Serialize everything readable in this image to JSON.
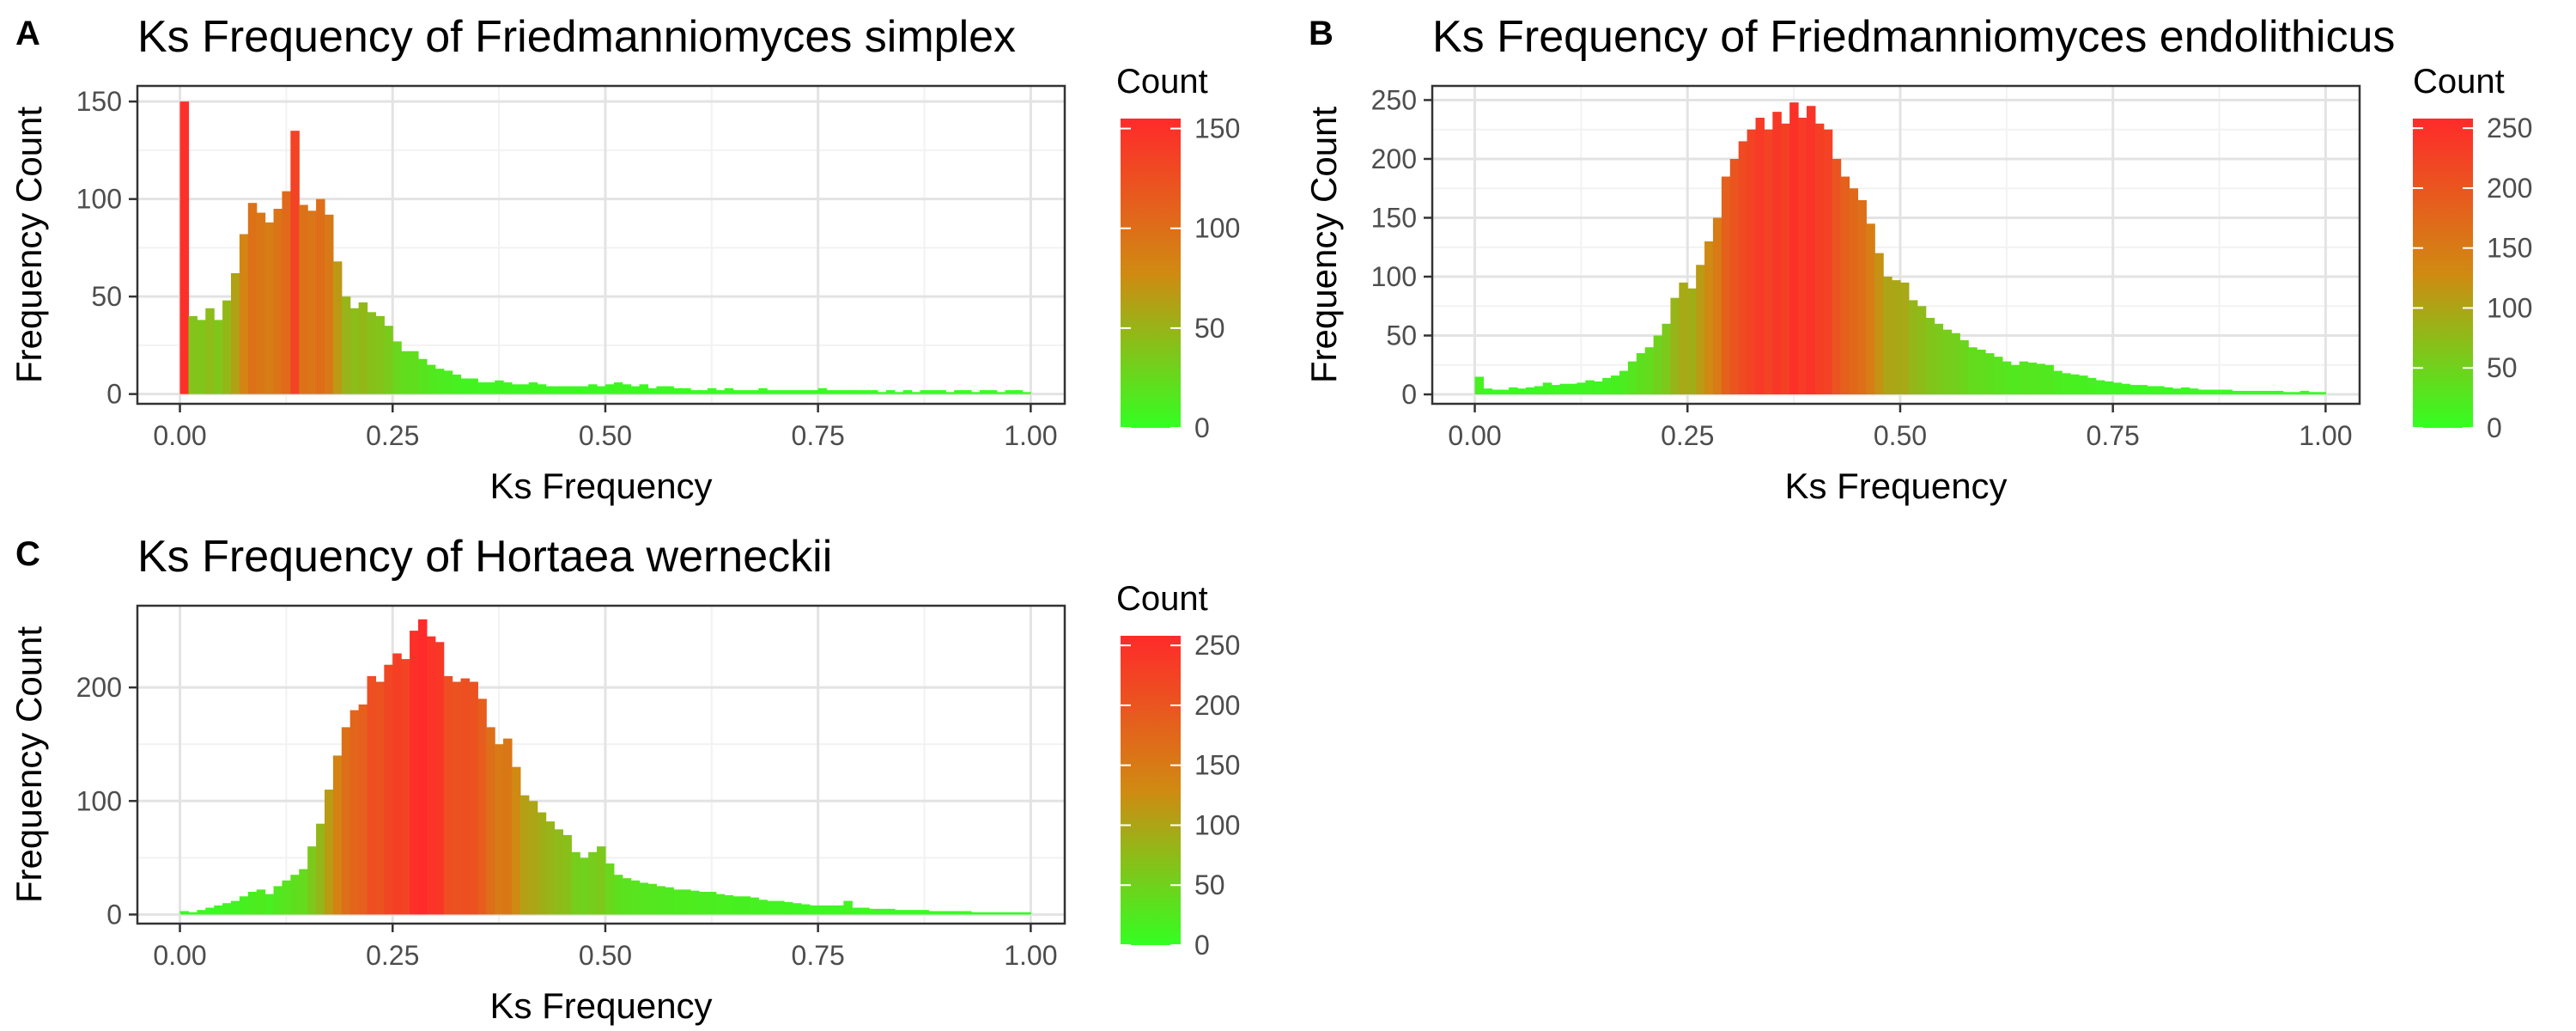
{
  "figure": {
    "colors": {
      "low": "#33ff22",
      "mid": "#d08a12",
      "high": "#ff2a2a",
      "grid_major": "#e3e3e3",
      "grid_minor": "#f2f2f2",
      "panel_border": "#333333"
    }
  },
  "chart_data": [
    {
      "type": "bar",
      "panel_letter": "A",
      "title": "Ks Frequency of Friedmanniomyces simplex",
      "xlabel": "Ks Frequency",
      "ylabel": "Frequency Count",
      "xlim": [
        -0.05,
        1.04
      ],
      "ylim": [
        -5,
        158
      ],
      "x_ticks": [
        0.0,
        0.25,
        0.5,
        0.75,
        1.0
      ],
      "x_tick_labels": [
        "0.00",
        "0.25",
        "0.50",
        "0.75",
        "1.00"
      ],
      "y_ticks": [
        0,
        50,
        100,
        150
      ],
      "y_tick_labels": [
        "0",
        "50",
        "100",
        "150"
      ],
      "legend": {
        "title": "Count",
        "min": 0,
        "max": 155,
        "ticks": [
          0,
          50,
          100,
          150
        ],
        "tick_labels": [
          "0",
          "50",
          "100",
          "150"
        ],
        "position": "right"
      },
      "bin_width": 0.01,
      "x": [
        0.0,
        0.01,
        0.02,
        0.03,
        0.04,
        0.05,
        0.06,
        0.07,
        0.08,
        0.09,
        0.1,
        0.11,
        0.12,
        0.13,
        0.14,
        0.15,
        0.16,
        0.17,
        0.18,
        0.19,
        0.2,
        0.21,
        0.22,
        0.23,
        0.24,
        0.25,
        0.26,
        0.27,
        0.28,
        0.29,
        0.3,
        0.31,
        0.32,
        0.33,
        0.34,
        0.35,
        0.36,
        0.37,
        0.38,
        0.39,
        0.4,
        0.41,
        0.42,
        0.43,
        0.44,
        0.45,
        0.46,
        0.47,
        0.48,
        0.49,
        0.5,
        0.51,
        0.52,
        0.53,
        0.54,
        0.55,
        0.56,
        0.57,
        0.58,
        0.59,
        0.6,
        0.61,
        0.62,
        0.63,
        0.64,
        0.65,
        0.66,
        0.67,
        0.68,
        0.69,
        0.7,
        0.71,
        0.72,
        0.73,
        0.74,
        0.75,
        0.76,
        0.77,
        0.78,
        0.79,
        0.8,
        0.81,
        0.82,
        0.83,
        0.84,
        0.85,
        0.86,
        0.87,
        0.88,
        0.89,
        0.9,
        0.91,
        0.92,
        0.93,
        0.94,
        0.95,
        0.96,
        0.97,
        0.98,
        0.99
      ],
      "values": [
        150,
        40,
        38,
        44,
        38,
        48,
        62,
        82,
        98,
        93,
        88,
        95,
        104,
        135,
        97,
        94,
        100,
        92,
        68,
        50,
        44,
        47,
        42,
        40,
        35,
        27,
        22,
        22,
        18,
        15,
        13,
        12,
        10,
        8,
        8,
        6,
        6,
        7,
        6,
        5,
        5,
        6,
        5,
        4,
        4,
        4,
        4,
        4,
        5,
        4,
        5,
        6,
        5,
        4,
        5,
        3,
        4,
        4,
        3,
        3,
        2,
        2,
        3,
        2,
        3,
        2,
        2,
        2,
        3,
        2,
        2,
        2,
        2,
        2,
        2,
        3,
        2,
        2,
        2,
        2,
        2,
        2,
        1,
        2,
        1,
        2,
        1,
        2,
        2,
        2,
        1,
        2,
        2,
        1,
        2,
        2,
        1,
        2,
        2,
        1
      ]
    },
    {
      "type": "bar",
      "panel_letter": "B",
      "title": "Ks Frequency of Friedmanniomyces endolithicus",
      "xlabel": "Ks Frequency",
      "ylabel": "Frequency Count",
      "xlim": [
        -0.05,
        1.04
      ],
      "ylim": [
        -8,
        262
      ],
      "x_ticks": [
        0.0,
        0.25,
        0.5,
        0.75,
        1.0
      ],
      "x_tick_labels": [
        "0.00",
        "0.25",
        "0.50",
        "0.75",
        "1.00"
      ],
      "y_ticks": [
        0,
        50,
        100,
        150,
        200,
        250
      ],
      "y_tick_labels": [
        "0",
        "50",
        "100",
        "150",
        "200",
        "250"
      ],
      "legend": {
        "title": "Count",
        "min": 0,
        "max": 258,
        "ticks": [
          0,
          50,
          100,
          150,
          200,
          250
        ],
        "tick_labels": [
          "0",
          "50",
          "100",
          "150",
          "200",
          "250"
        ],
        "position": "right"
      },
      "bin_width": 0.01,
      "x": [
        0.0,
        0.01,
        0.02,
        0.03,
        0.04,
        0.05,
        0.06,
        0.07,
        0.08,
        0.09,
        0.1,
        0.11,
        0.12,
        0.13,
        0.14,
        0.15,
        0.16,
        0.17,
        0.18,
        0.19,
        0.2,
        0.21,
        0.22,
        0.23,
        0.24,
        0.25,
        0.26,
        0.27,
        0.28,
        0.29,
        0.3,
        0.31,
        0.32,
        0.33,
        0.34,
        0.35,
        0.36,
        0.37,
        0.38,
        0.39,
        0.4,
        0.41,
        0.42,
        0.43,
        0.44,
        0.45,
        0.46,
        0.47,
        0.48,
        0.49,
        0.5,
        0.51,
        0.52,
        0.53,
        0.54,
        0.55,
        0.56,
        0.57,
        0.58,
        0.59,
        0.6,
        0.61,
        0.62,
        0.63,
        0.64,
        0.65,
        0.66,
        0.67,
        0.68,
        0.69,
        0.7,
        0.71,
        0.72,
        0.73,
        0.74,
        0.75,
        0.76,
        0.77,
        0.78,
        0.79,
        0.8,
        0.81,
        0.82,
        0.83,
        0.84,
        0.85,
        0.86,
        0.87,
        0.88,
        0.89,
        0.9,
        0.91,
        0.92,
        0.93,
        0.94,
        0.95,
        0.96,
        0.97,
        0.98,
        0.99
      ],
      "values": [
        15,
        5,
        4,
        4,
        6,
        5,
        6,
        7,
        10,
        8,
        9,
        9,
        10,
        12,
        11,
        14,
        16,
        20,
        28,
        35,
        40,
        50,
        60,
        82,
        95,
        90,
        110,
        130,
        150,
        185,
        200,
        215,
        225,
        235,
        225,
        240,
        230,
        248,
        235,
        245,
        230,
        225,
        200,
        185,
        175,
        165,
        145,
        120,
        100,
        97,
        95,
        80,
        75,
        65,
        60,
        55,
        52,
        46,
        40,
        38,
        35,
        32,
        28,
        25,
        28,
        27,
        26,
        25,
        20,
        18,
        17,
        16,
        14,
        12,
        11,
        10,
        9,
        8,
        8,
        7,
        7,
        6,
        5,
        6,
        5,
        4,
        4,
        4,
        4,
        3,
        3,
        3,
        3,
        3,
        3,
        2,
        2,
        3,
        2,
        2
      ]
    },
    {
      "type": "bar",
      "panel_letter": "C",
      "title": "Ks Frequency of Hortaea werneckii",
      "xlabel": "Ks Frequency",
      "ylabel": "Frequency Count",
      "xlim": [
        -0.05,
        1.04
      ],
      "ylim": [
        -8,
        272
      ],
      "x_ticks": [
        0.0,
        0.25,
        0.5,
        0.75,
        1.0
      ],
      "x_tick_labels": [
        "0.00",
        "0.25",
        "0.50",
        "0.75",
        "1.00"
      ],
      "y_ticks": [
        0,
        100,
        200
      ],
      "y_tick_labels": [
        "0",
        "100",
        "200"
      ],
      "legend": {
        "title": "Count",
        "min": 0,
        "max": 258,
        "ticks": [
          0,
          50,
          100,
          150,
          200,
          250
        ],
        "tick_labels": [
          "0",
          "50",
          "100",
          "150",
          "200",
          "250"
        ],
        "position": "right"
      },
      "bin_width": 0.01,
      "x": [
        0.0,
        0.01,
        0.02,
        0.03,
        0.04,
        0.05,
        0.06,
        0.07,
        0.08,
        0.09,
        0.1,
        0.11,
        0.12,
        0.13,
        0.14,
        0.15,
        0.16,
        0.17,
        0.18,
        0.19,
        0.2,
        0.21,
        0.22,
        0.23,
        0.24,
        0.25,
        0.26,
        0.27,
        0.28,
        0.29,
        0.3,
        0.31,
        0.32,
        0.33,
        0.34,
        0.35,
        0.36,
        0.37,
        0.38,
        0.39,
        0.4,
        0.41,
        0.42,
        0.43,
        0.44,
        0.45,
        0.46,
        0.47,
        0.48,
        0.49,
        0.5,
        0.51,
        0.52,
        0.53,
        0.54,
        0.55,
        0.56,
        0.57,
        0.58,
        0.59,
        0.6,
        0.61,
        0.62,
        0.63,
        0.64,
        0.65,
        0.66,
        0.67,
        0.68,
        0.69,
        0.7,
        0.71,
        0.72,
        0.73,
        0.74,
        0.75,
        0.76,
        0.77,
        0.78,
        0.79,
        0.8,
        0.81,
        0.82,
        0.83,
        0.84,
        0.85,
        0.86,
        0.87,
        0.88,
        0.89,
        0.9,
        0.91,
        0.92,
        0.93,
        0.94,
        0.95,
        0.96,
        0.97,
        0.98,
        0.99
      ],
      "values": [
        3,
        2,
        4,
        6,
        8,
        10,
        12,
        16,
        20,
        22,
        18,
        25,
        30,
        35,
        40,
        60,
        80,
        110,
        140,
        165,
        180,
        185,
        210,
        205,
        220,
        230,
        225,
        250,
        260,
        245,
        240,
        210,
        205,
        208,
        205,
        190,
        165,
        150,
        155,
        130,
        105,
        100,
        90,
        82,
        75,
        70,
        55,
        50,
        55,
        60,
        45,
        35,
        32,
        30,
        28,
        27,
        25,
        24,
        22,
        22,
        21,
        20,
        20,
        18,
        17,
        16,
        16,
        15,
        13,
        12,
        12,
        11,
        10,
        9,
        8,
        8,
        8,
        8,
        12,
        6,
        6,
        5,
        5,
        5,
        4,
        4,
        4,
        4,
        3,
        3,
        3,
        3,
        3,
        2,
        2,
        2,
        2,
        2,
        2,
        2
      ]
    }
  ]
}
